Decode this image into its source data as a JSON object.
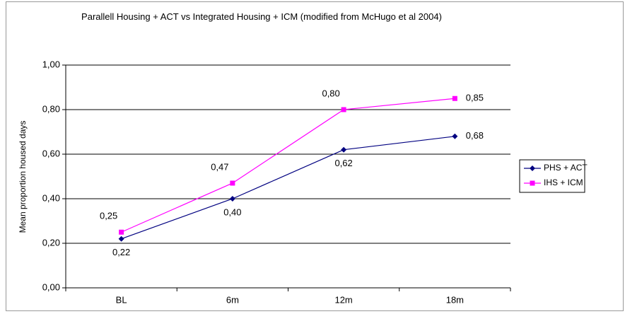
{
  "chart_data": {
    "type": "line",
    "title": "Parallell Housing + ACT vs Integrated Housing + ICM (modified from McHugo et al 2004)",
    "y_label": "Mean proportion housed days",
    "categories": [
      "BL",
      "6m",
      "12m",
      "18m"
    ],
    "series": [
      {
        "name": "PHS + ACT",
        "color": "#000080",
        "marker": "diamond",
        "values": [
          0.22,
          0.4,
          0.62,
          0.68
        ],
        "value_labels": [
          "0,22",
          "0,40",
          "0,62",
          "0,68"
        ]
      },
      {
        "name": "IHS + ICM",
        "color": "#ff00ff",
        "marker": "square",
        "values": [
          0.25,
          0.47,
          0.8,
          0.85
        ],
        "value_labels": [
          "0,25",
          "0,47",
          "0,80",
          "0,85"
        ]
      }
    ],
    "ylim": [
      0,
      1
    ],
    "yticks": [
      {
        "value": 0,
        "label": "0,00"
      },
      {
        "value": 0.2,
        "label": "0,20"
      },
      {
        "value": 0.4,
        "label": "0,40"
      },
      {
        "value": 0.6,
        "label": "0,60"
      },
      {
        "value": 0.8,
        "label": "0,80"
      },
      {
        "value": 1,
        "label": "1,00"
      }
    ],
    "grid": true,
    "legend": "right"
  }
}
